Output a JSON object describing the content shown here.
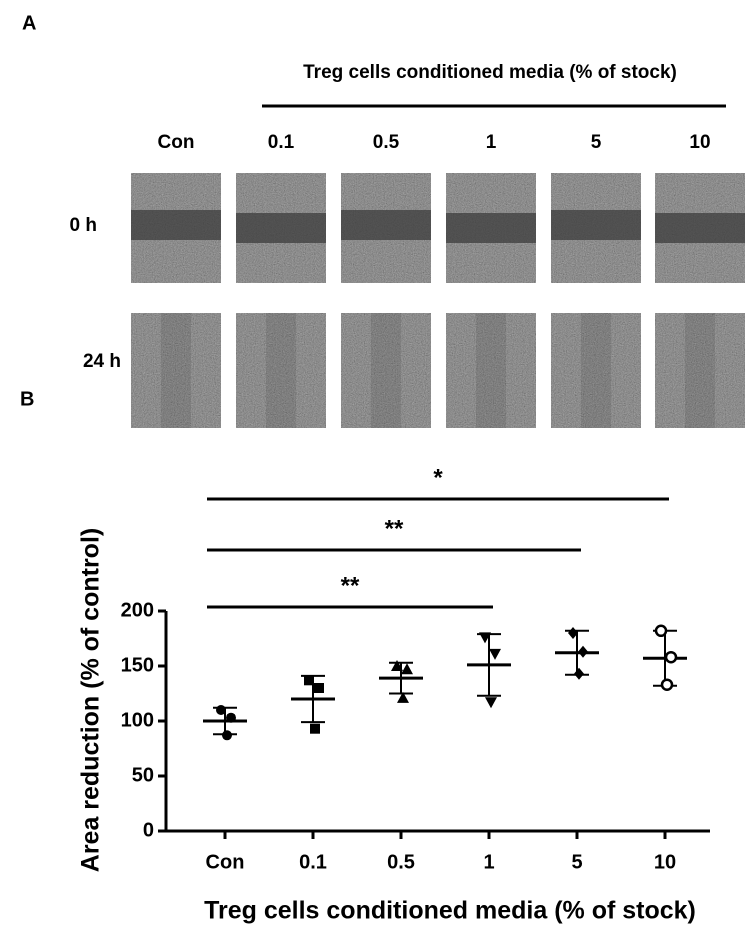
{
  "panel_a": {
    "label": "A",
    "header": "Treg cells conditioned media (% of stock)",
    "columns": [
      "Con",
      "0.1",
      "0.5",
      "1",
      "5",
      "10"
    ],
    "rows": [
      "0 h",
      "24 h"
    ]
  },
  "chart_data": {
    "type": "dot-plot",
    "panel_label": "B",
    "y_label": "Area reduction (% of control)",
    "x_label": "Treg cells conditioned media (% of stock)",
    "categories": [
      "Con",
      "0.1",
      "0.5",
      "1",
      "5",
      "10"
    ],
    "markers": [
      "circle",
      "square",
      "triangle-up",
      "triangle-down",
      "diamond",
      "circle-open"
    ],
    "points": [
      [
        110,
        103,
        87
      ],
      [
        137,
        130,
        93
      ],
      [
        150,
        147,
        121
      ],
      [
        176,
        161,
        117
      ],
      [
        180,
        163,
        143
      ],
      [
        182,
        158,
        133
      ]
    ],
    "means": [
      100,
      120,
      139,
      151,
      162,
      157
    ],
    "sd": [
      12,
      21,
      14,
      28,
      20,
      25
    ],
    "ylim": [
      0,
      200
    ],
    "yticks": [
      0,
      50,
      100,
      150,
      200
    ],
    "significance": [
      {
        "from": "Con",
        "to": "1",
        "label": "**"
      },
      {
        "from": "Con",
        "to": "5",
        "label": "**"
      },
      {
        "from": "Con",
        "to": "10",
        "label": "*"
      }
    ],
    "color": "#000000"
  }
}
